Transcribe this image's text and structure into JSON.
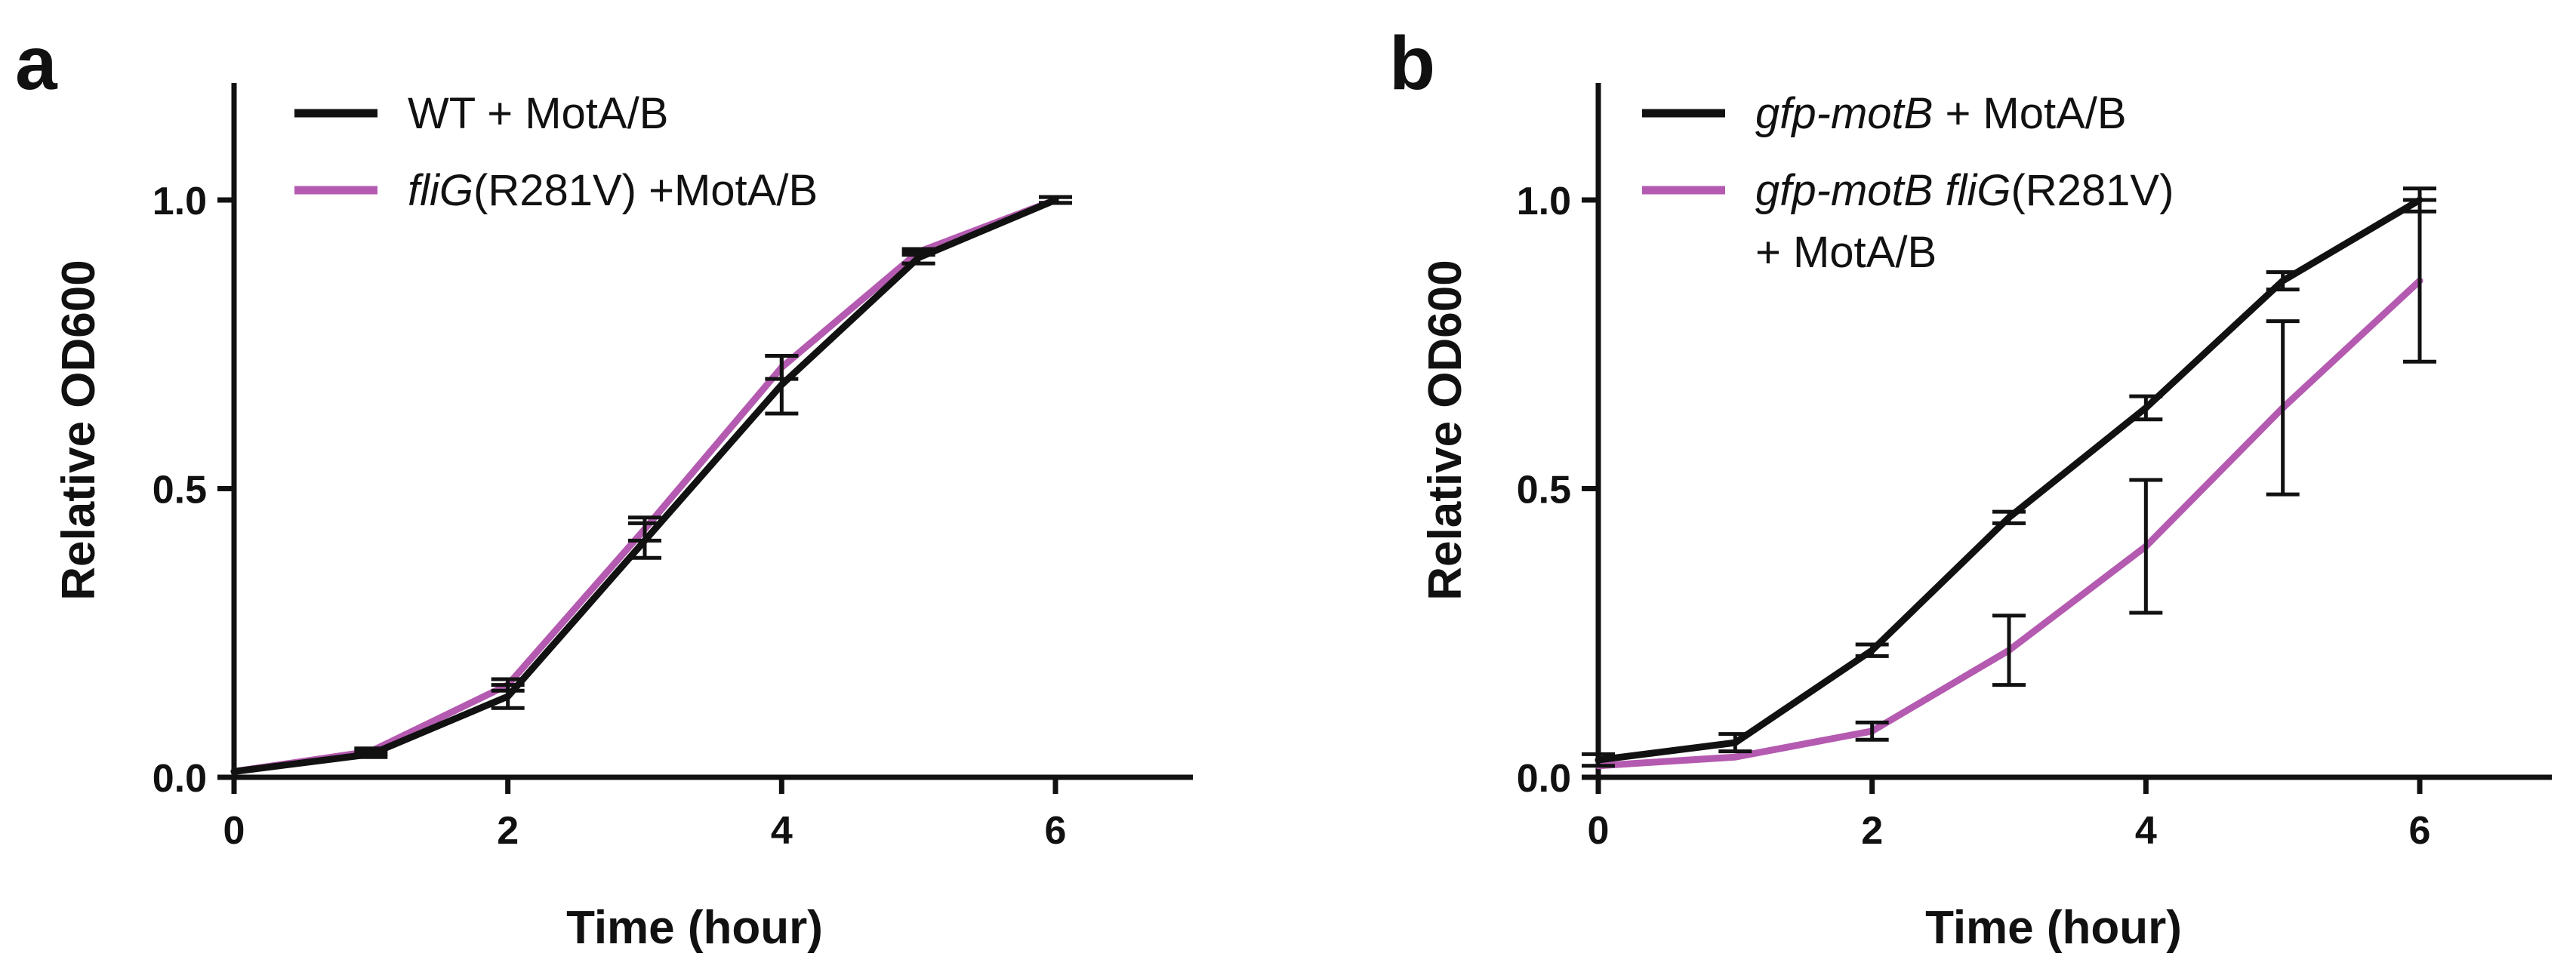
{
  "colors": {
    "black_series": "#111111",
    "purple_series": "#b45ab0",
    "axis": "#111111",
    "background": "#ffffff"
  },
  "chart_data": [
    {
      "panel": "a",
      "type": "line",
      "xlabel": "Time (hour)",
      "ylabel": "Relative OD600",
      "xlim": [
        0,
        7
      ],
      "ylim": [
        0,
        1.2
      ],
      "xticks": [
        0,
        2,
        4,
        6
      ],
      "xtick_labels": [
        "0",
        "2",
        "4",
        "6"
      ],
      "yticks": [
        0,
        0.5,
        1
      ],
      "ytick_labels": [
        "0.0",
        "0.5",
        "1.0"
      ],
      "grid": false,
      "legend_position": "top-left",
      "series": [
        {
          "name": "WT + MotA/B",
          "legend_parts": [
            {
              "text": "WT + MotA/B",
              "italic": false
            }
          ],
          "color": "#111111",
          "x": [
            0,
            1,
            2,
            3,
            4,
            5,
            6
          ],
          "values": [
            0.01,
            0.04,
            0.14,
            0.41,
            0.68,
            0.9,
            1.0
          ],
          "errors": [
            0.0,
            0.005,
            0.02,
            0.03,
            0.05,
            0.01,
            0.005
          ]
        },
        {
          "name": "fliG(R281V) +MotA/B",
          "legend_parts": [
            {
              "text": "fliG",
              "italic": true
            },
            {
              "text": "(R281V) +MotA/B",
              "italic": false
            }
          ],
          "color": "#b45ab0",
          "x": [
            0,
            1,
            2,
            3,
            4,
            5,
            6
          ],
          "values": [
            0.01,
            0.045,
            0.16,
            0.43,
            0.71,
            0.91,
            1.0
          ],
          "errors": [
            0.0,
            0.005,
            0.01,
            0.02,
            0.02,
            0.005,
            0.005
          ]
        }
      ]
    },
    {
      "panel": "b",
      "type": "line",
      "xlabel": "Time (hour)",
      "ylabel": "Relative OD600",
      "xlim": [
        0,
        7
      ],
      "ylim": [
        0,
        1.2
      ],
      "xticks": [
        0,
        2,
        4,
        6
      ],
      "xtick_labels": [
        "0",
        "2",
        "4",
        "6"
      ],
      "yticks": [
        0,
        0.5,
        1
      ],
      "ytick_labels": [
        "0.0",
        "0.5",
        "1.0"
      ],
      "grid": false,
      "legend_position": "top-left",
      "series": [
        {
          "name": "gfp-motB + MotA/B",
          "legend_parts": [
            {
              "text": "gfp-motB",
              "italic": true
            },
            {
              "text": " + MotA/B",
              "italic": false
            }
          ],
          "color": "#111111",
          "x": [
            0,
            1,
            2,
            3,
            4,
            5,
            6
          ],
          "values": [
            0.03,
            0.06,
            0.22,
            0.45,
            0.64,
            0.86,
            1.0
          ],
          "errors": [
            0.01,
            0.015,
            0.01,
            0.01,
            0.02,
            0.015,
            0.02
          ]
        },
        {
          "name": "gfp-motB fliG(R281V) + MotA/B",
          "legend_parts": [
            {
              "text": "gfp-motB fliG",
              "italic": true
            },
            {
              "text": "(R281V)",
              "italic": false
            }
          ],
          "legend_parts_line2": [
            {
              "text": "+ MotA/B",
              "italic": false
            }
          ],
          "color": "#b45ab0",
          "x": [
            0,
            1,
            2,
            3,
            4,
            5,
            6
          ],
          "values": [
            0.02,
            0.035,
            0.08,
            0.22,
            0.4,
            0.64,
            0.86
          ],
          "errors": [
            0.0,
            0.0,
            0.015,
            0.06,
            0.115,
            0.15,
            0.14
          ]
        }
      ]
    }
  ]
}
